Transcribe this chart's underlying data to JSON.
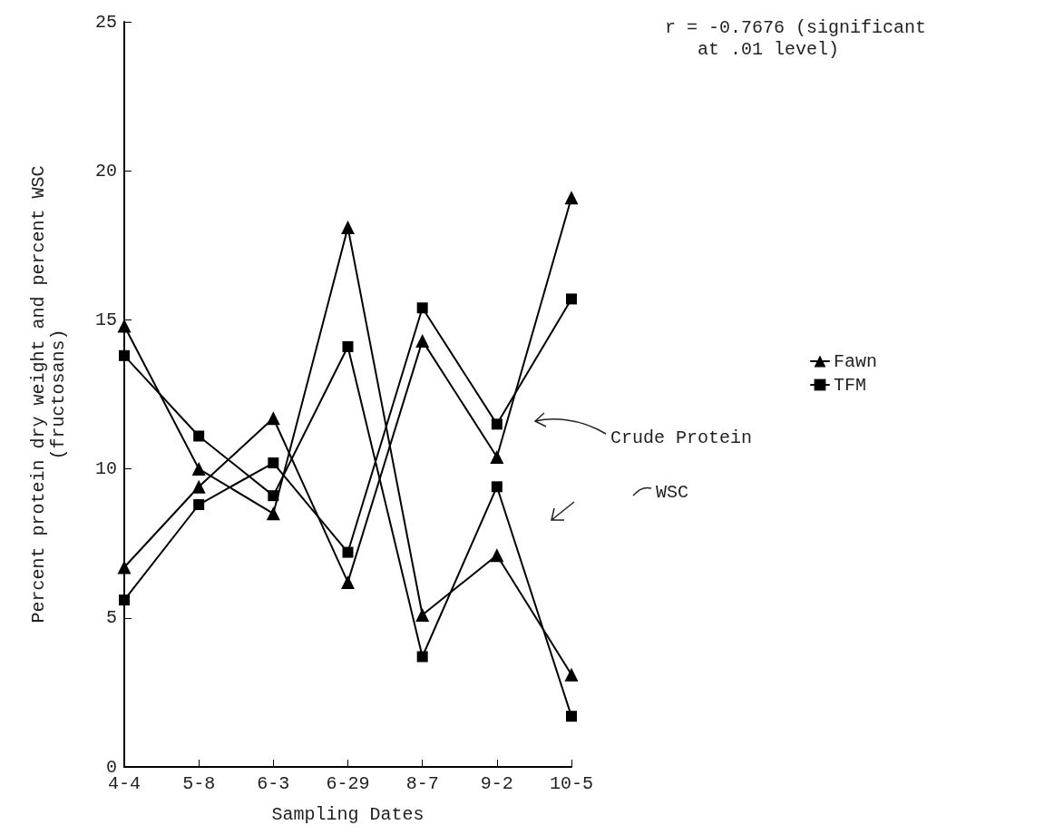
{
  "chart_data": {
    "type": "line",
    "xlabel": "Sampling Dates",
    "ylabel": "Percent protein dry weight and percent WSC\n(fructosans)",
    "categories": [
      "4-4",
      "5-8",
      "6-3",
      "6-29",
      "8-7",
      "9-2",
      "10-5"
    ],
    "series": [
      {
        "name": "Fawn",
        "color": "#000000",
        "marker": "triangle",
        "values": [
          6.7,
          9.4,
          11.7,
          6.2,
          14.3,
          10.4,
          19.1
        ]
      },
      {
        "color": "#000000",
        "marker": "triangle",
        "values": [
          14.8,
          10.0,
          8.5,
          18.1,
          5.1,
          7.1,
          3.1
        ]
      },
      {
        "name": "TFM",
        "color": "#000000",
        "marker": "square",
        "values": [
          5.6,
          8.8,
          10.2,
          7.2,
          15.4,
          11.5,
          15.7
        ]
      },
      {
        "color": "#000000",
        "marker": "square",
        "values": [
          13.8,
          11.1,
          9.1,
          14.1,
          3.7,
          9.4,
          1.7
        ]
      }
    ],
    "ylim": [
      0,
      25
    ],
    "yticks": [
      0,
      5,
      10,
      15,
      20,
      25
    ],
    "legend": "right",
    "grid": false,
    "annotations": [
      "r = -0.7676 (significant\n   at .01 level)",
      "Crude Protein",
      "WSC"
    ]
  }
}
